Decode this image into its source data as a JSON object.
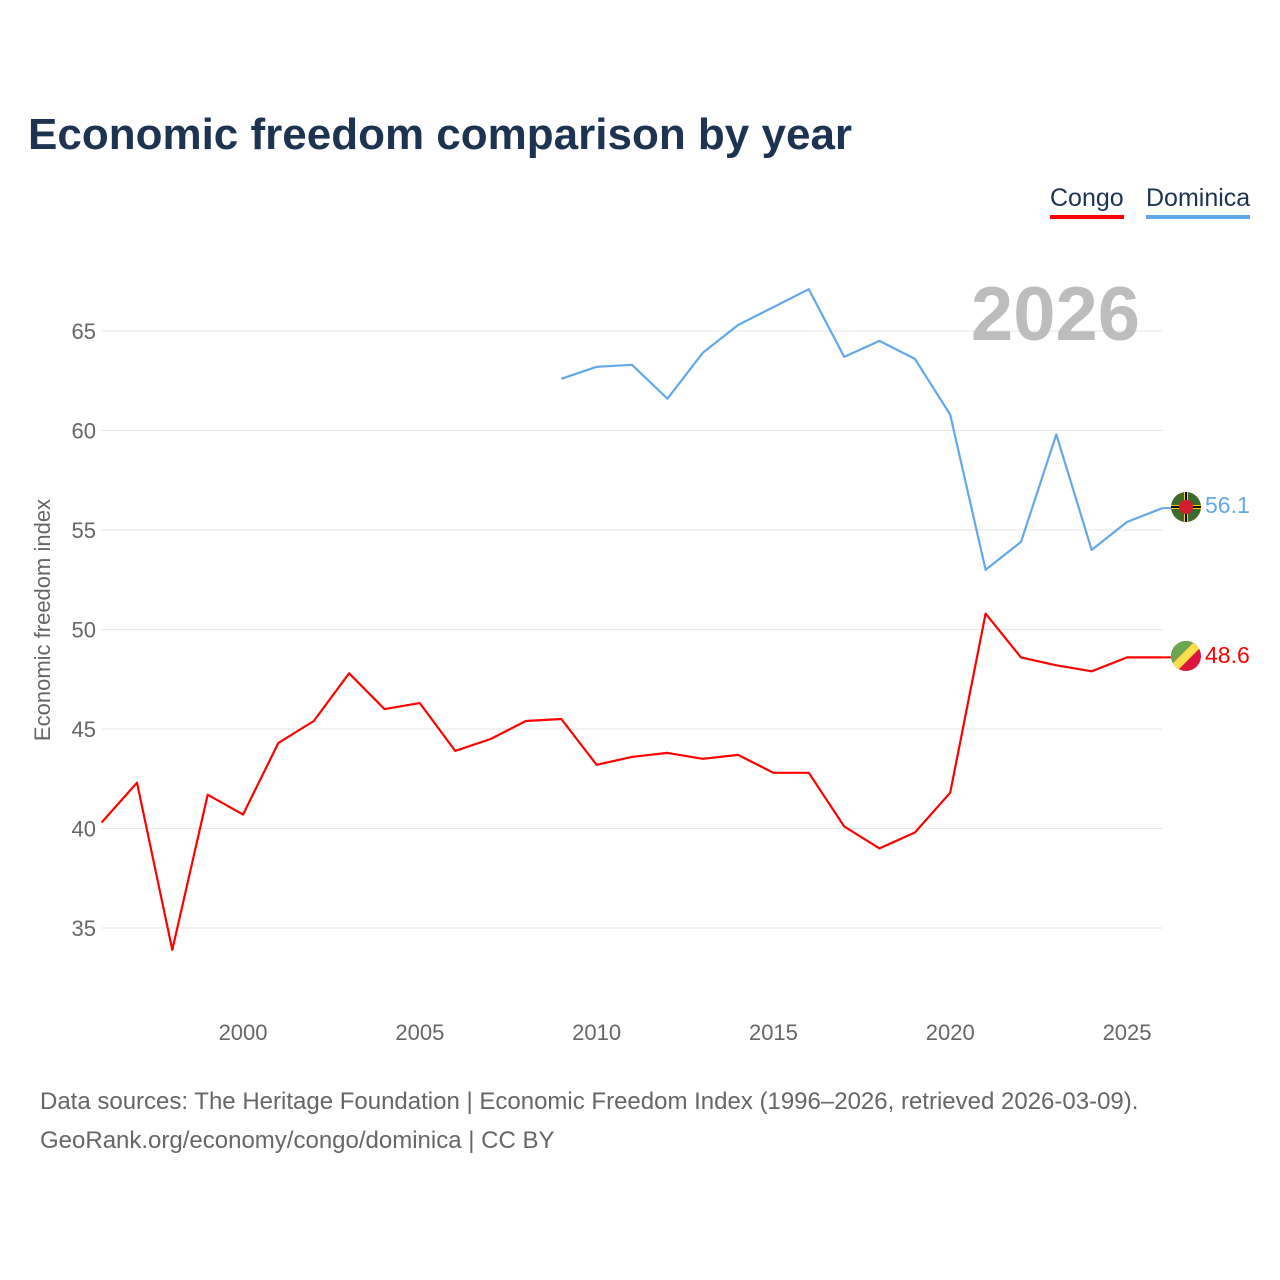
{
  "chart_data": {
    "type": "line",
    "title": "Economic freedom comparison by year",
    "xlabel": "",
    "ylabel": "Economic freedom index",
    "xlim": [
      1996,
      2026
    ],
    "ylim": [
      31,
      69
    ],
    "x_ticks": [
      2000,
      2005,
      2010,
      2015,
      2020,
      2025
    ],
    "y_ticks": [
      35,
      40,
      45,
      50,
      55,
      60,
      65
    ],
    "grid": true,
    "legend_position": "top-right",
    "year_watermark": "2026",
    "series": [
      {
        "name": "Congo",
        "color": "#ff0000",
        "end_label": "48.6",
        "x": [
          1996,
          1997,
          1998,
          1999,
          2000,
          2001,
          2002,
          2003,
          2004,
          2005,
          2006,
          2007,
          2008,
          2009,
          2010,
          2011,
          2012,
          2013,
          2014,
          2015,
          2016,
          2017,
          2018,
          2019,
          2020,
          2021,
          2022,
          2023,
          2024,
          2025,
          2026
        ],
        "values": [
          40.3,
          42.3,
          33.9,
          41.7,
          40.7,
          44.3,
          45.4,
          47.8,
          46.0,
          46.3,
          43.9,
          44.5,
          45.4,
          45.5,
          43.2,
          43.6,
          43.8,
          43.5,
          43.7,
          42.8,
          42.8,
          40.1,
          39.0,
          39.8,
          41.8,
          50.8,
          48.6,
          48.2,
          47.9,
          48.6,
          48.6
        ]
      },
      {
        "name": "Dominica",
        "color": "#62a8ea",
        "end_label": "56.1",
        "x": [
          2009,
          2010,
          2011,
          2012,
          2013,
          2014,
          2015,
          2016,
          2017,
          2018,
          2019,
          2020,
          2021,
          2022,
          2023,
          2024,
          2025,
          2026
        ],
        "values": [
          62.6,
          63.2,
          63.3,
          61.6,
          63.9,
          65.3,
          66.2,
          67.1,
          63.7,
          64.5,
          63.6,
          60.8,
          53.0,
          54.4,
          59.8,
          54.0,
          55.4,
          56.1
        ]
      }
    ]
  },
  "footer": {
    "line1": "Data sources: The Heritage Foundation | Economic Freedom Index (1996–2026, retrieved 2026-03-09).",
    "line2": "GeoRank.org/economy/congo/dominica | CC BY"
  },
  "icons": {
    "congo_flag": "congo-flag-icon",
    "dominica_flag": "dominica-flag-icon"
  }
}
